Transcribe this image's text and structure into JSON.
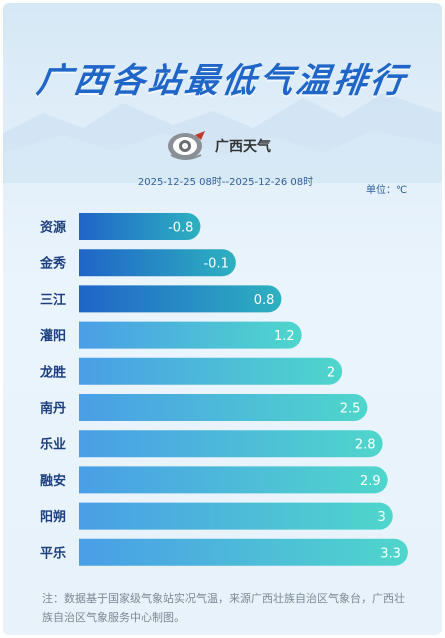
{
  "header": {
    "title": "广西各站最低气温排行",
    "logo_text": "广西天气",
    "time_range": "2025-12-25 08时--2025-12-26 08时",
    "unit": "单位：℃"
  },
  "footer": {
    "note": "注：数据基于国家级气象站实况气温，来源广西壮族自治区气象台，广西壮族自治区气象服务中心制图。"
  },
  "colors": {
    "title": "#1f66c8",
    "bar_dark_start": "#2064c8",
    "bar_dark_end": "#2db1c0",
    "bar_light_start": "#4a9ee6",
    "bar_light_end": "#4fd6cc",
    "label": "#1d3f80"
  },
  "chart_data": {
    "type": "bar",
    "orientation": "horizontal",
    "title": "广西各站最低气温排行",
    "categories": [
      "资源",
      "金秀",
      "三江",
      "灌阳",
      "龙胜",
      "南丹",
      "乐业",
      "融安",
      "阳朔",
      "平乐"
    ],
    "values": [
      -0.8,
      -0.1,
      0.8,
      1.2,
      2,
      2.5,
      2.8,
      2.9,
      3,
      3.3
    ],
    "value_labels": [
      "-0.8",
      "-0.1",
      "0.8",
      "1.2",
      "2",
      "2.5",
      "2.8",
      "2.9",
      "3",
      "3.3"
    ],
    "unit": "℃",
    "highlight_count": 3,
    "xlim": [
      -3.2,
      3.4
    ]
  }
}
